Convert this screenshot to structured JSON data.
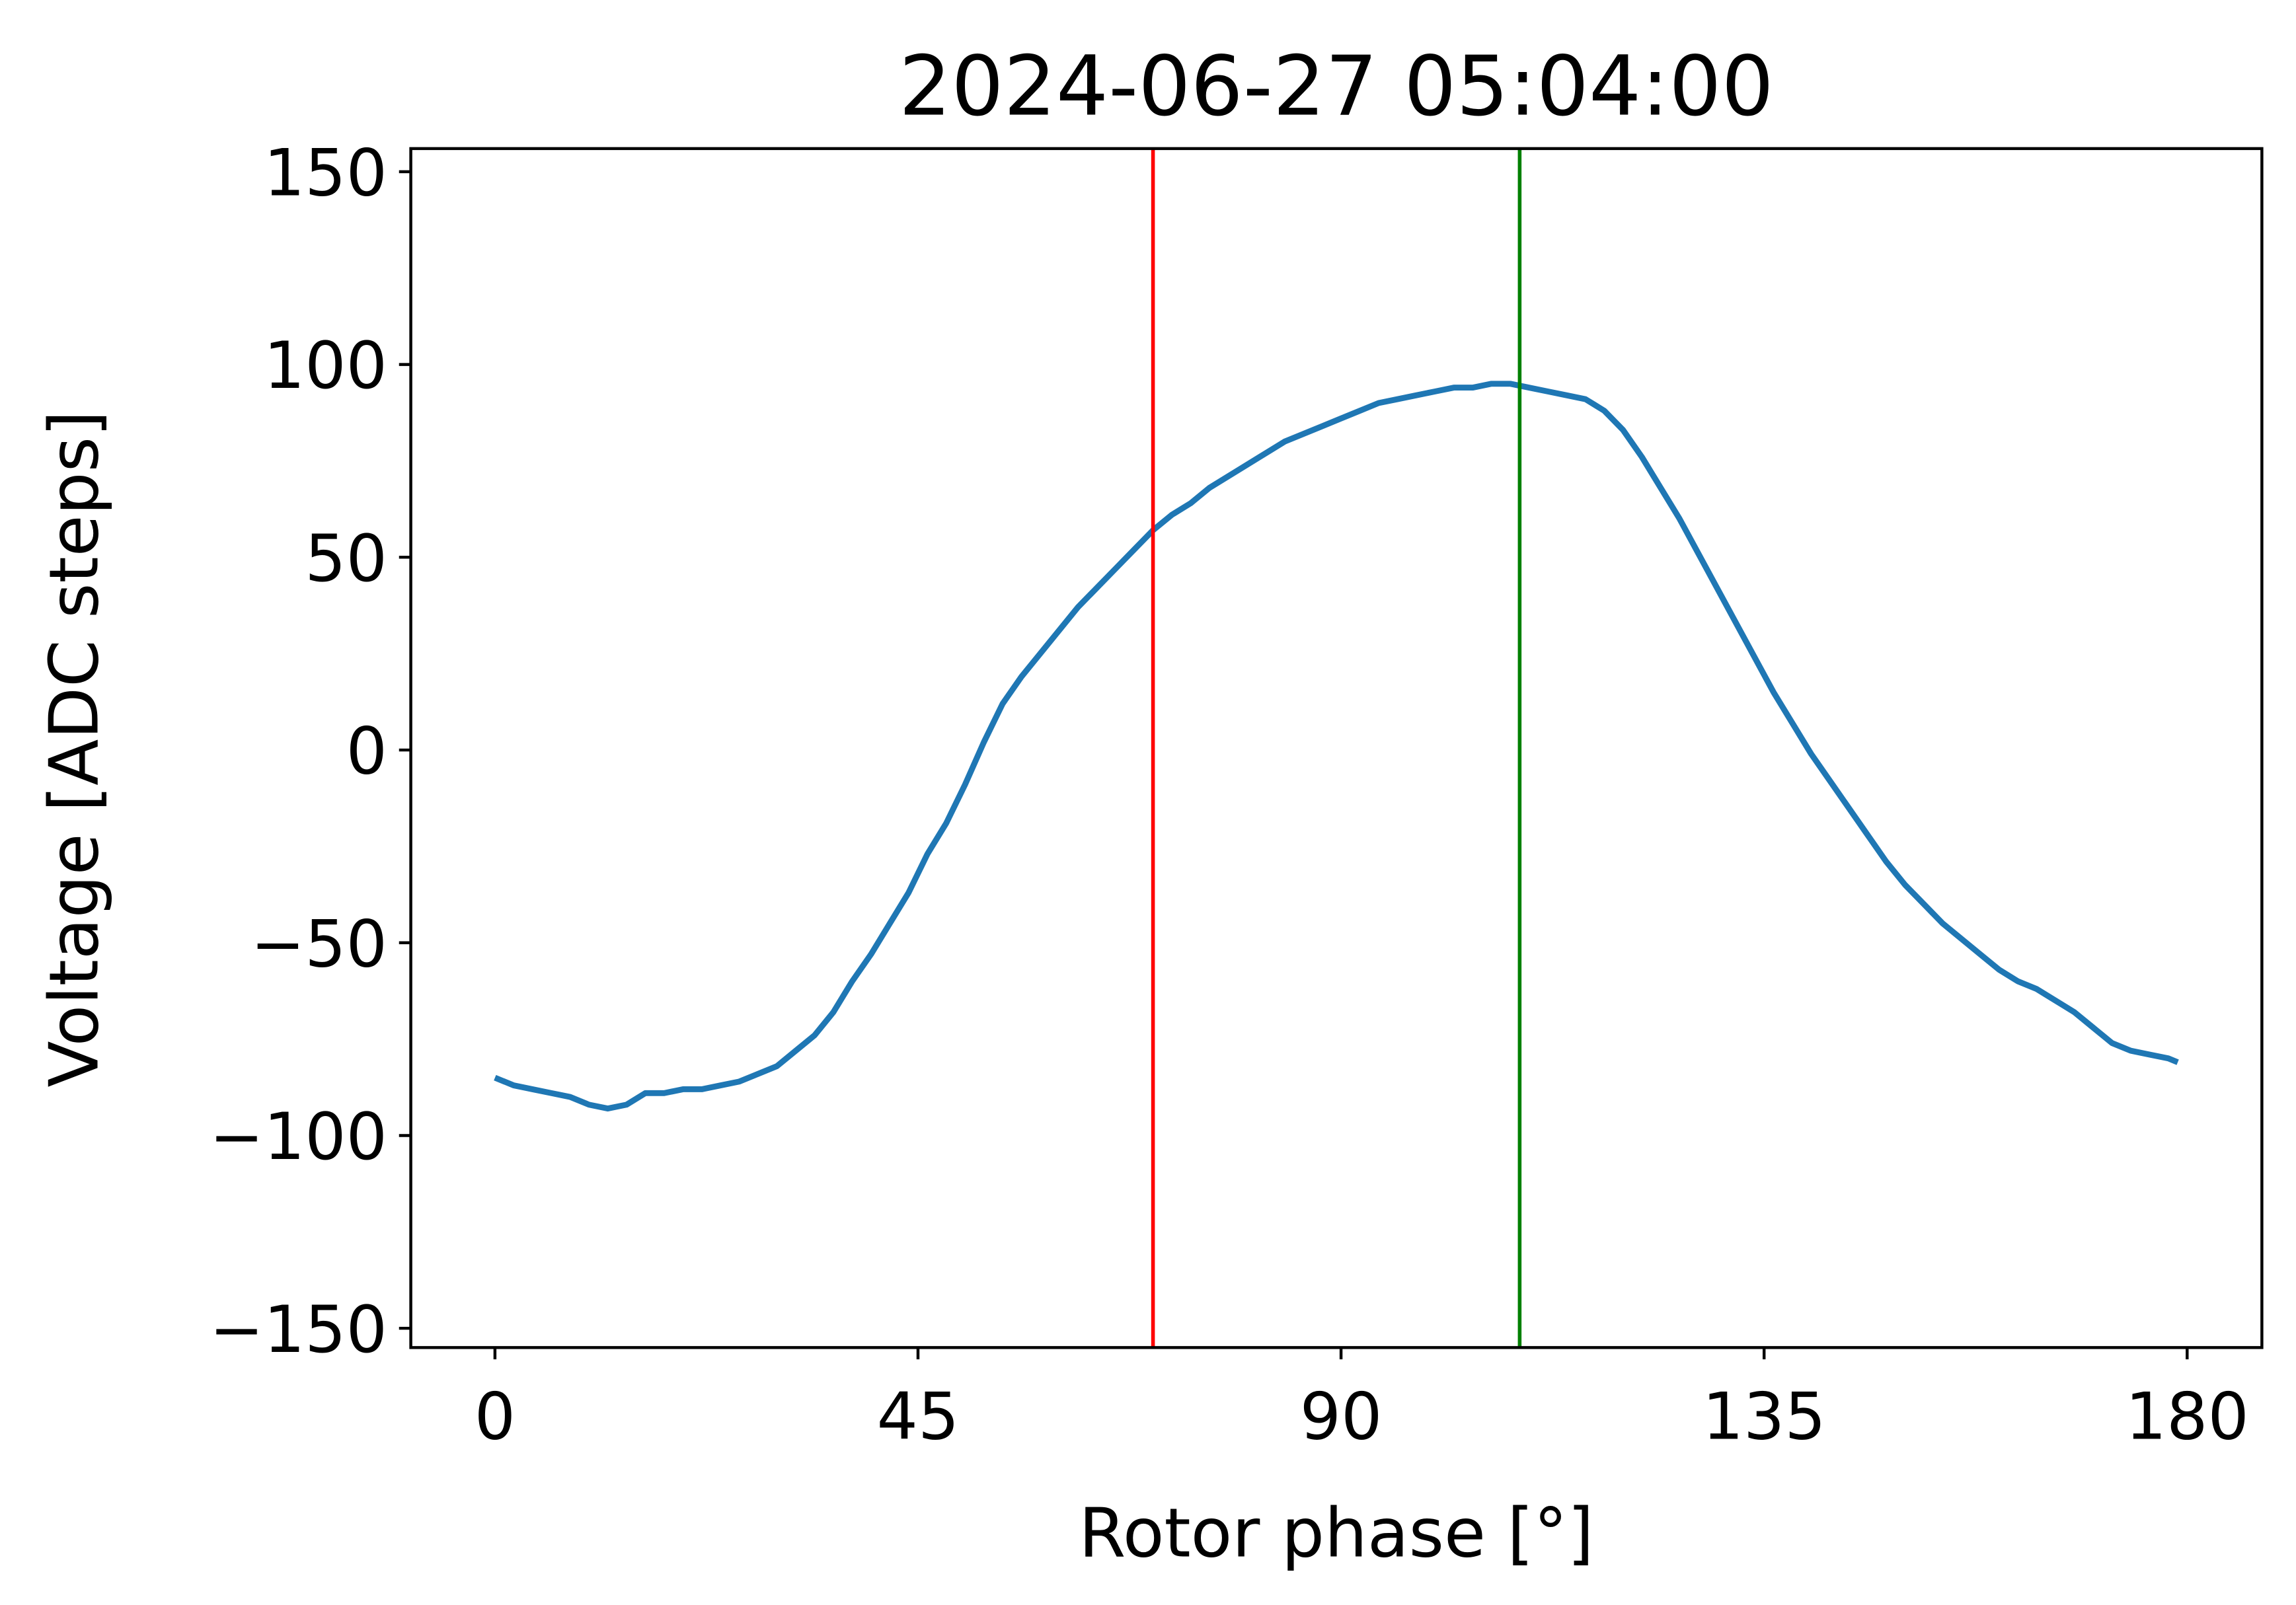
{
  "chart_data": {
    "type": "line",
    "title": "2024-06-27 05:04:00",
    "xlabel": "Rotor phase [°]",
    "ylabel": "Voltage  [ADC steps]",
    "x": [
      0,
      2,
      4,
      6,
      8,
      10,
      12,
      14,
      16,
      18,
      20,
      22,
      24,
      26,
      28,
      30,
      32,
      34,
      36,
      38,
      40,
      42,
      44,
      46,
      48,
      50,
      52,
      54,
      56,
      58,
      60,
      62,
      64,
      66,
      68,
      70,
      72,
      74,
      76,
      78,
      80,
      82,
      84,
      86,
      88,
      90,
      92,
      94,
      96,
      98,
      100,
      102,
      104,
      106,
      108,
      110,
      112,
      114,
      116,
      118,
      120,
      122,
      124,
      126,
      128,
      130,
      132,
      134,
      136,
      138,
      140,
      142,
      144,
      146,
      148,
      150,
      152,
      154,
      156,
      158,
      160,
      162,
      164,
      166,
      168,
      170,
      172,
      174,
      176,
      178,
      179
    ],
    "series": [
      {
        "color": "#1f77b4",
        "values": [
          -85,
          -87,
          -88,
          -89,
          -90,
          -92,
          -93,
          -92,
          -89,
          -89,
          -88,
          -88,
          -87,
          -86,
          -84,
          -82,
          -78,
          -74,
          -68,
          -60,
          -53,
          -45,
          -37,
          -27,
          -19,
          -9,
          2,
          12,
          19,
          25,
          31,
          37,
          42,
          47,
          52,
          57,
          61,
          64,
          68,
          71,
          74,
          77,
          80,
          82,
          84,
          86,
          88,
          90,
          91,
          92,
          93,
          94,
          94,
          95,
          95,
          94,
          93,
          92,
          91,
          88,
          83,
          76,
          68,
          60,
          51,
          42,
          33,
          24,
          15,
          7,
          -1,
          -8,
          -15,
          -22,
          -29,
          -35,
          -40,
          -45,
          -49,
          -53,
          -57,
          -60,
          -62,
          -65,
          -68,
          -72,
          -76,
          -78,
          -79,
          -80,
          -81
        ]
      }
    ],
    "vlines": [
      {
        "x": 70,
        "color": "#ff0000"
      },
      {
        "x": 109,
        "color": "#008000"
      }
    ],
    "xlim": [
      -8.95,
      187.95
    ],
    "xticks": [
      0,
      45,
      90,
      135,
      180
    ],
    "ylim": [
      -155,
      156
    ],
    "yticks": [
      {
        "value": -150,
        "label": "−150"
      },
      {
        "value": -100,
        "label": "−100"
      },
      {
        "value": -50,
        "label": "−50"
      },
      0,
      50,
      100,
      150
    ]
  }
}
